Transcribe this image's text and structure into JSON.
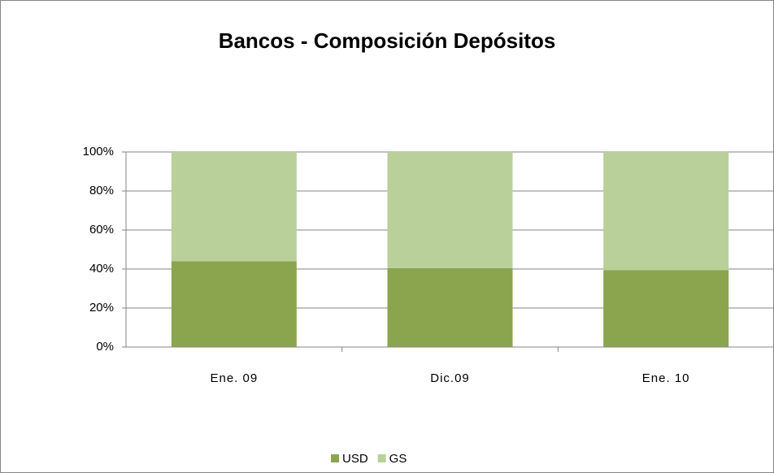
{
  "chart_data": {
    "type": "stacked_bar",
    "title": "Bancos - Composición Depósitos",
    "categories": [
      "Ene. 09",
      "Dic.09",
      "Ene. 10"
    ],
    "series": [
      {
        "name": "USD",
        "color": "#8ba54e",
        "values": [
          44,
          40.5,
          39.5
        ]
      },
      {
        "name": "GS",
        "color": "#bad09a",
        "values": [
          56,
          59.5,
          60.5
        ]
      }
    ],
    "ylim": [
      0,
      100
    ],
    "yticks": [
      {
        "value": 0,
        "label": "0%"
      },
      {
        "value": 20,
        "label": "20%"
      },
      {
        "value": 40,
        "label": "40%"
      },
      {
        "value": 60,
        "label": "60%"
      },
      {
        "value": 80,
        "label": "80%"
      },
      {
        "value": 100,
        "label": "100%"
      }
    ],
    "grid": true,
    "legend": "bottom"
  }
}
